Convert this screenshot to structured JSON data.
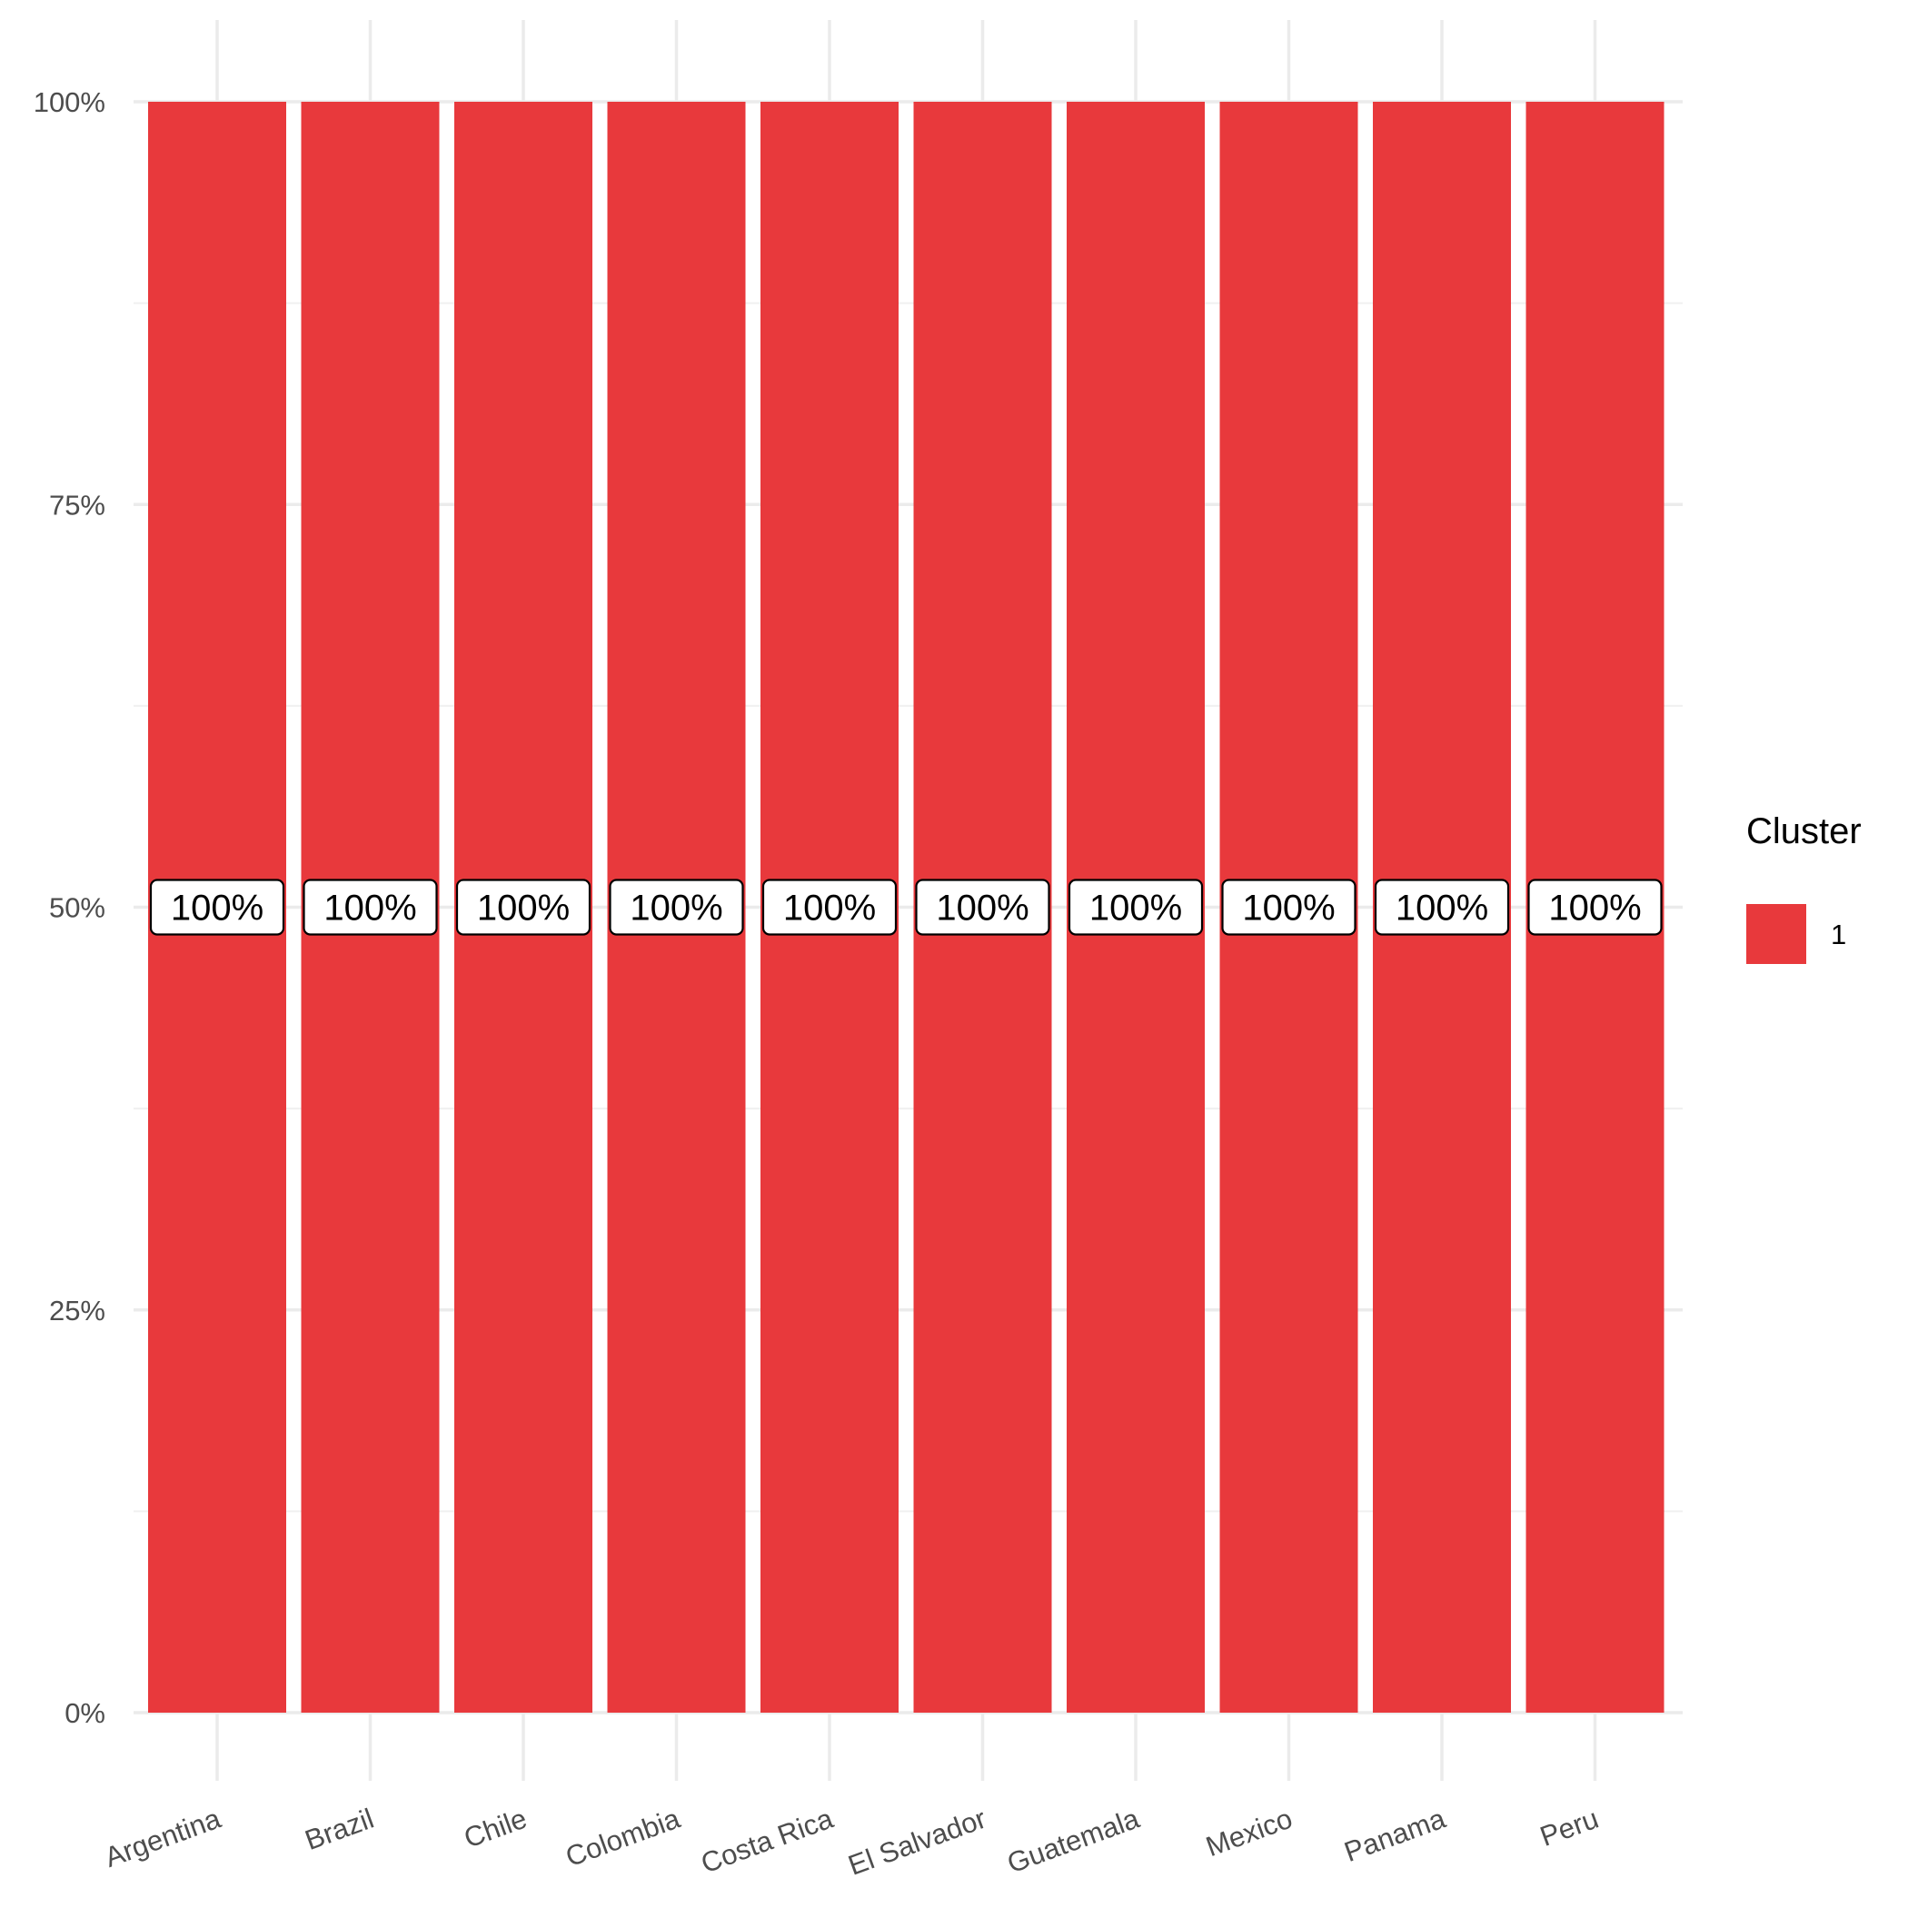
{
  "chart_data": {
    "type": "bar",
    "stacked": true,
    "categories": [
      "Argentina",
      "Brazil",
      "Chile",
      "Colombia",
      "Costa Rica",
      "El Salvador",
      "Guatemala",
      "Mexico",
      "Panama",
      "Peru"
    ],
    "series": [
      {
        "name": "1",
        "color": "#e8393c",
        "values": [
          100,
          100,
          100,
          100,
          100,
          100,
          100,
          100,
          100,
          100
        ],
        "data_labels": [
          "100%",
          "100%",
          "100%",
          "100%",
          "100%",
          "100%",
          "100%",
          "100%",
          "100%",
          "100%"
        ]
      }
    ],
    "title": "",
    "xlabel": "",
    "ylabel": "",
    "ylim": [
      0,
      100
    ],
    "y_ticks": [
      0,
      25,
      50,
      75,
      100
    ],
    "y_tick_labels": [
      "0%",
      "25%",
      "50%",
      "75%",
      "100%"
    ],
    "grid": true,
    "legend": {
      "title": "Cluster",
      "position": "right"
    }
  }
}
